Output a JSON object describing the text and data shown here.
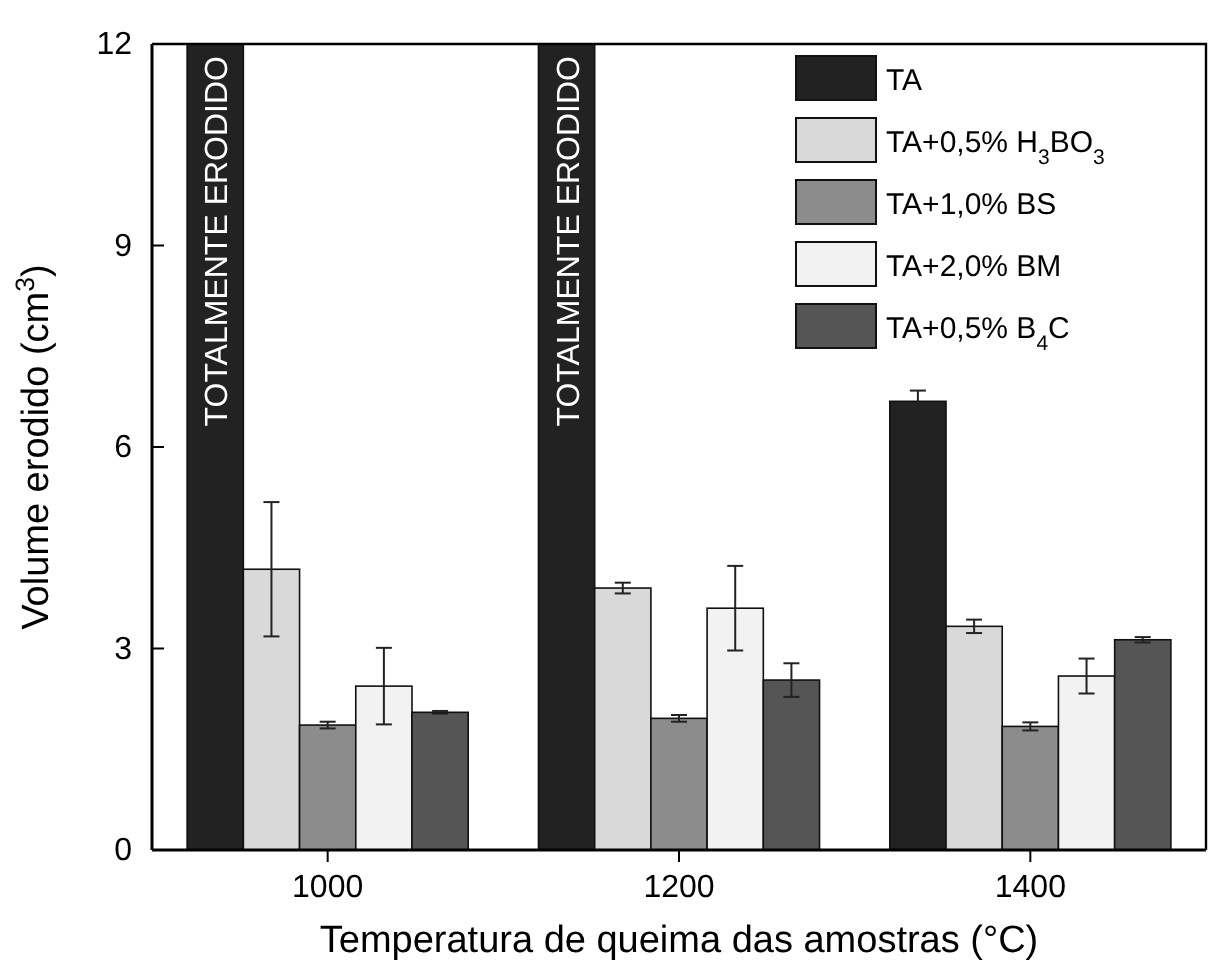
{
  "chart_data": {
    "type": "bar",
    "xlabel": "Temperatura de queima das amostras (°C)",
    "ylabel": "Volume erodido (cm$^{3}$)",
    "categories": [
      "1000",
      "1200",
      "1400"
    ],
    "series": [
      {
        "name": "TA",
        "color": "#222222",
        "values": [
          12,
          12,
          6.68
        ],
        "errors": [
          null,
          null,
          0.16
        ]
      },
      {
        "name": "TA+0,5% H$_{3}$BO$_{3}$",
        "color": "#d9d9d9",
        "values": [
          4.18,
          3.9,
          3.33
        ],
        "errors": [
          1.0,
          0.08,
          0.1
        ]
      },
      {
        "name": "TA+1,0% BS",
        "color": "#8c8c8c",
        "values": [
          1.86,
          1.96,
          1.84
        ],
        "errors": [
          0.05,
          0.05,
          0.06
        ]
      },
      {
        "name": "TA+2,0% BM",
        "color": "#f2f2f2",
        "values": [
          2.44,
          3.6,
          2.59
        ],
        "errors": [
          0.57,
          0.63,
          0.26
        ]
      },
      {
        "name": "TA+0,5% B$_{4}$C",
        "color": "#555555",
        "values": [
          2.05,
          2.53,
          3.13
        ],
        "errors": [
          0.02,
          0.25,
          0.04
        ]
      }
    ],
    "ylim": [
      0,
      12
    ],
    "yticks": [
      0,
      3,
      6,
      9,
      12
    ],
    "legend": "top right",
    "annotations": [
      "TOTALMENTE ERODIDO",
      "TOTALMENTE ERODIDO"
    ]
  }
}
